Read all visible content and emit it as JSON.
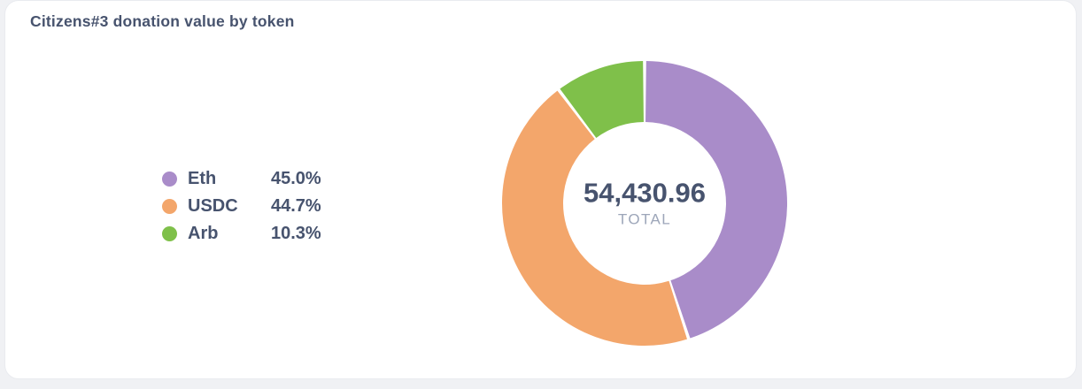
{
  "card": {
    "title": "Citizens#3 donation value by token"
  },
  "chart_data": {
    "type": "pie",
    "variant": "donut",
    "title": "Citizens#3 donation value by token",
    "categories": [
      "Eth",
      "USDC",
      "Arb"
    ],
    "values": [
      45.0,
      44.7,
      10.3
    ],
    "unit": "%",
    "series": [
      {
        "name": "Eth",
        "value": 45.0,
        "percent_label": "45.0%",
        "color": "#a98cc9"
      },
      {
        "name": "USDC",
        "value": 44.7,
        "percent_label": "44.7%",
        "color": "#f3a66b"
      },
      {
        "name": "Arb",
        "value": 10.3,
        "percent_label": "10.3%",
        "color": "#7fc04a"
      }
    ],
    "center": {
      "value": "54,430.96",
      "label": "TOTAL"
    },
    "legend_position": "left",
    "start_angle_deg": 0,
    "direction": "clockwise"
  }
}
